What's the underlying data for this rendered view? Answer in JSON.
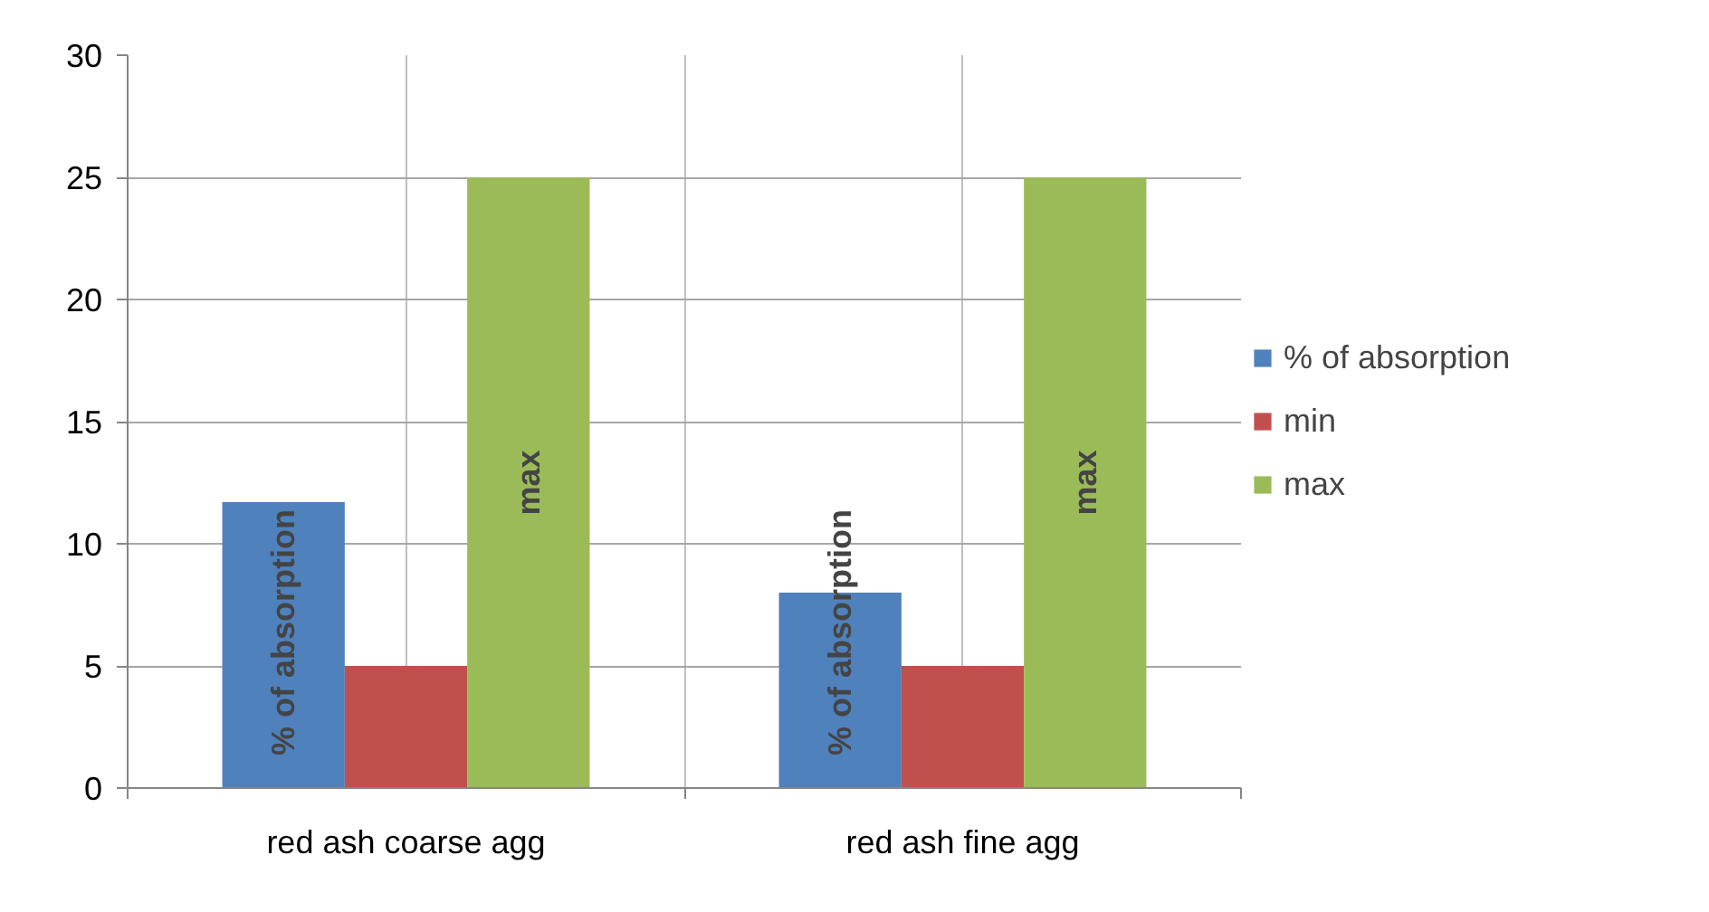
{
  "chart_data": {
    "type": "bar",
    "categories": [
      "red ash coarse agg",
      "red ash fine agg"
    ],
    "series": [
      {
        "name": "% of absorption",
        "color": "#4f81bd",
        "values": [
          11.7,
          8.0
        ]
      },
      {
        "name": "min",
        "color": "#c0504d",
        "values": [
          5,
          5
        ]
      },
      {
        "name": "max",
        "color": "#9bbb59",
        "values": [
          25,
          25
        ]
      }
    ],
    "ylim": [
      0,
      30
    ],
    "yticks": [
      0,
      5,
      10,
      15,
      20,
      25,
      30
    ],
    "annotations": [
      "% of absorption",
      "max",
      "% of absorption",
      "max"
    ],
    "grid": true,
    "legend": "right"
  }
}
